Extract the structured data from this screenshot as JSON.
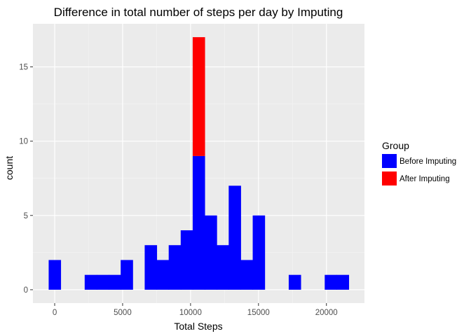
{
  "chart_data": {
    "type": "bar",
    "title": "Difference in total number of steps per day by Imputing",
    "xlabel": "Total Steps",
    "ylabel": "count",
    "xlim": [
      -1600,
      22800
    ],
    "ylim": [
      -0.9,
      17.9
    ],
    "x_ticks": [
      0,
      5000,
      10000,
      15000,
      20000
    ],
    "x_tick_labels": [
      "0",
      "5000",
      "10000",
      "15000",
      "20000"
    ],
    "y_ticks": [
      0,
      5,
      10,
      15
    ],
    "y_tick_labels": [
      "0",
      "5",
      "10",
      "15"
    ],
    "grid": true,
    "bin_width": 883,
    "legend": {
      "title": "Group",
      "placement": "right",
      "entries": [
        {
          "label": "Before Imputing",
          "color": "#0000ff"
        },
        {
          "label": "After Imputing",
          "color": "#ff0000"
        }
      ]
    },
    "bins_start": [
      -442,
      442,
      1325,
      2208,
      3092,
      3975,
      4858,
      5742,
      6625,
      7508,
      8392,
      9275,
      10158,
      11042,
      11925,
      12808,
      13692,
      14575,
      15458,
      16342,
      17225,
      18108,
      18992,
      19875,
      20758
    ],
    "series": [
      {
        "name": "Before Imputing",
        "color": "#0000ff",
        "values": [
          2,
          0,
          0,
          1,
          1,
          1,
          2,
          0,
          3,
          2,
          3,
          4,
          9,
          5,
          3,
          7,
          2,
          5,
          0,
          0,
          1,
          0,
          0,
          1,
          1
        ]
      },
      {
        "name": "After Imputing",
        "color": "#ff0000",
        "values": [
          0,
          0,
          0,
          0,
          0,
          0,
          0,
          0,
          0,
          0,
          0,
          0,
          8,
          0,
          0,
          0,
          0,
          0,
          0,
          0,
          0,
          0,
          0,
          0,
          0
        ]
      }
    ]
  }
}
